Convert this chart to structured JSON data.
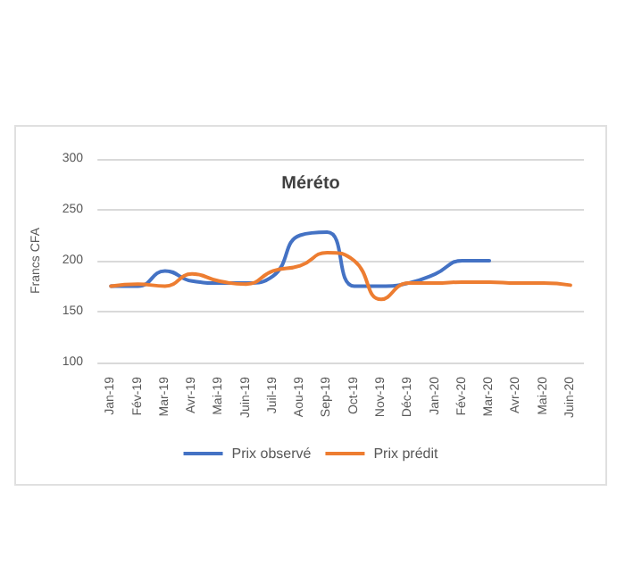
{
  "chart_data": {
    "type": "line",
    "title": "Méréto",
    "ylabel": "Francs CFA",
    "categories": [
      "Jan-19",
      "Fév-19",
      "Mar-19",
      "Avr-19",
      "Mai-19",
      "Juin-19",
      "Juil-19",
      "Aou-19",
      "Sep-19",
      "Oct-19",
      "Nov-19",
      "Déc-19",
      "Jan-20",
      "Fév-20",
      "Mar-20",
      "Avr-20",
      "Mai-20",
      "Juin-20"
    ],
    "series": [
      {
        "name": "Prix observé",
        "color": "#4472c4",
        "values": [
          175,
          175,
          190,
          180,
          178,
          178,
          185,
          225,
          228,
          175,
          175,
          178,
          187,
          200,
          200,
          null,
          null,
          null
        ]
      },
      {
        "name": "Prix prédit",
        "color": "#ed7d31",
        "values": [
          175,
          177,
          175,
          187,
          180,
          177,
          190,
          195,
          208,
          200,
          162,
          178,
          178,
          179,
          179,
          178,
          178,
          176
        ]
      }
    ],
    "ylim": [
      100,
      300
    ],
    "yticks": [
      100,
      150,
      200,
      250,
      300
    ],
    "grid": "y",
    "legend": "bottom",
    "marker": "none",
    "line_style": "solid"
  }
}
